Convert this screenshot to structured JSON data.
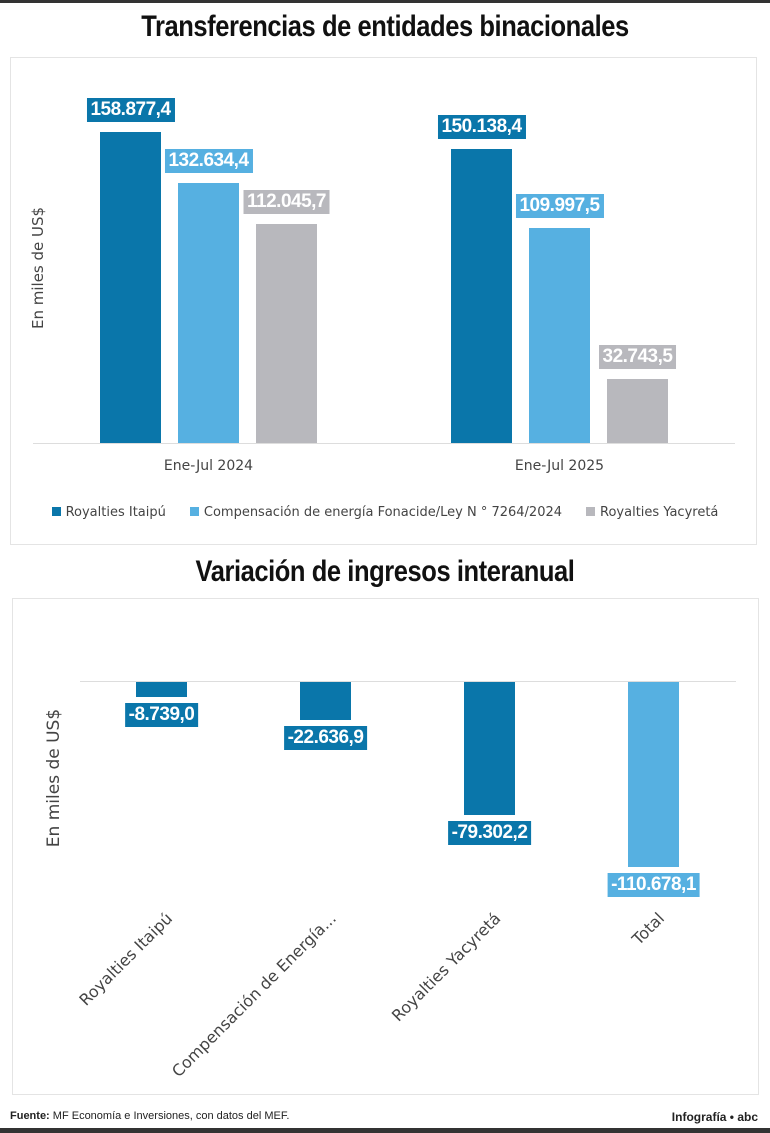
{
  "chart_data": [
    {
      "type": "bar",
      "title": "Transferencias de entidades binacionales",
      "ylabel": "En miles de US$",
      "categories": [
        "Ene-Jul 2024",
        "Ene-Jul 2025"
      ],
      "series": [
        {
          "name": "Royalties Itaipú",
          "color": "#0a76aa",
          "values": [
            158877.4,
            150138.4
          ],
          "labels": [
            "158.877,4",
            "150.138,4"
          ]
        },
        {
          "name": "Compensación de energía Fonacide/Ley N ° 7264/2024",
          "color": "#56b0e1",
          "values": [
            132634.4,
            109997.5
          ],
          "labels": [
            "132.634,4",
            "109.997,5"
          ]
        },
        {
          "name": "Royalties Yacyretá",
          "color": "#b8b8bd",
          "values": [
            112045.7,
            32743.5
          ],
          "labels": [
            "112.045,7",
            "32.743,5"
          ]
        }
      ],
      "legend": "bottom",
      "grid": false
    },
    {
      "type": "bar",
      "title": "Variación de ingresos interanual",
      "ylabel": "En miles de US$",
      "categories": [
        "Royalties Itaipú",
        "Compensación de Energía...",
        "Royalties Yacyretá",
        "Total"
      ],
      "values": [
        -8739.0,
        -22636.9,
        -79302.2,
        -110678.1
      ],
      "labels": [
        "-8.739,0",
        "-22.636,9",
        "-79.302,2",
        "-110.678,1"
      ],
      "colors": [
        "#0a76aa",
        "#0a76aa",
        "#0a76aa",
        "#56b0e1"
      ],
      "grid": false
    }
  ],
  "footer": {
    "source_label": "Fuente:",
    "source_text": " MF Economía e Inversiones, con datos del MEF.",
    "credit": "Infografía • abc"
  }
}
